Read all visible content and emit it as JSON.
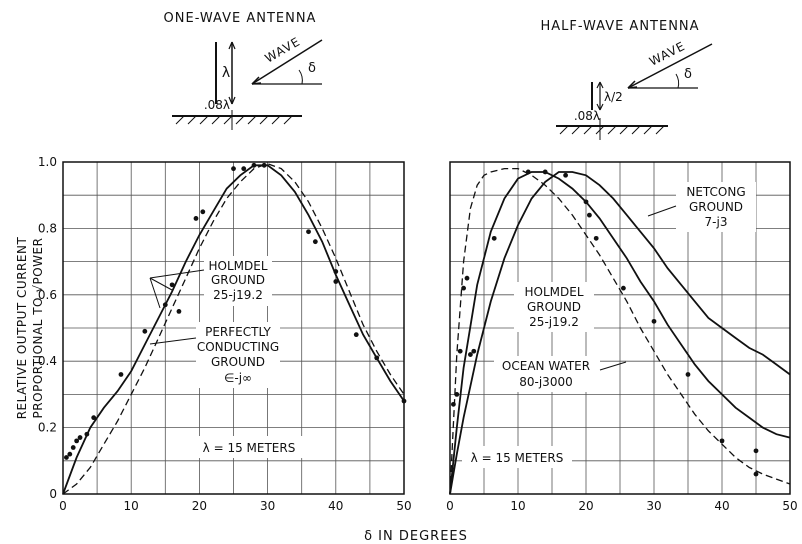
{
  "shared": {
    "xlabel": "δ IN DEGREES",
    "ylabel_line1": "RELATIVE OUTPUT CURRENT",
    "ylabel_line2": "PROPORTIONAL TO √POWER"
  },
  "diagrams": {
    "left": {
      "title": "ONE-WAVE ANTENNA",
      "height_label": "λ",
      "spacing_label": ".08λ",
      "wave_label": "WAVE",
      "angle_label": "δ"
    },
    "right": {
      "title": "HALF-WAVE ANTENNA",
      "height_label": "λ/2",
      "spacing_label": ".08λ",
      "wave_label": "WAVE",
      "angle_label": "δ"
    }
  },
  "chart_data": [
    {
      "type": "line",
      "title": "ONE-WAVE ANTENNA",
      "xlabel": "δ IN DEGREES",
      "ylabel": "RELATIVE OUTPUT CURRENT PROPORTIONAL TO √POWER",
      "xlim": [
        0,
        50
      ],
      "ylim": [
        0,
        1.0
      ],
      "xticks": [
        "0",
        "10",
        "20",
        "30",
        "40",
        "50"
      ],
      "yticks": [
        "0",
        "0.2",
        "0.4",
        "0.6",
        "0.8",
        "1.0"
      ],
      "grid": true,
      "annotations": [
        {
          "text": "HOLMDEL",
          "line2": "GROUND",
          "line3": "25-j19.2"
        },
        {
          "text": "PERFECTLY",
          "line2": "CONDUCTING",
          "line3": "GROUND",
          "line4": "∈-j∞"
        },
        {
          "text": "λ = 15 METERS"
        }
      ],
      "series": [
        {
          "style": "solid",
          "x": [
            0,
            2,
            4,
            6,
            8,
            10,
            12,
            14,
            16,
            18,
            20,
            22,
            24,
            26,
            28,
            30,
            32,
            34,
            36,
            38,
            40,
            42,
            44,
            46,
            48,
            50
          ],
          "y": [
            0.0,
            0.11,
            0.2,
            0.26,
            0.31,
            0.37,
            0.45,
            0.53,
            0.61,
            0.7,
            0.78,
            0.85,
            0.92,
            0.96,
            0.99,
            0.99,
            0.96,
            0.91,
            0.84,
            0.76,
            0.66,
            0.57,
            0.48,
            0.41,
            0.34,
            0.28
          ]
        },
        {
          "style": "dashed",
          "x": [
            0,
            2,
            4,
            6,
            8,
            10,
            12,
            14,
            16,
            18,
            20,
            22,
            24,
            26,
            28,
            30,
            32,
            34,
            36,
            38,
            40,
            42,
            44,
            46,
            48,
            50
          ],
          "y": [
            0.0,
            0.03,
            0.08,
            0.15,
            0.22,
            0.3,
            0.38,
            0.47,
            0.56,
            0.65,
            0.74,
            0.82,
            0.89,
            0.94,
            0.98,
            0.995,
            0.98,
            0.94,
            0.88,
            0.8,
            0.71,
            0.61,
            0.51,
            0.43,
            0.36,
            0.3
          ]
        }
      ],
      "measured_points": {
        "x": [
          0.5,
          1.0,
          1.5,
          2.0,
          2.5,
          3.5,
          4.5,
          8.5,
          12.0,
          15.0,
          16.0,
          17.0,
          19.5,
          20.5,
          25.0,
          26.5,
          28.0,
          29.5,
          36.0,
          37.0,
          40.0,
          40.0,
          43.0,
          46.0,
          50.0
        ],
        "y": [
          0.11,
          0.12,
          0.14,
          0.16,
          0.17,
          0.18,
          0.23,
          0.36,
          0.49,
          0.57,
          0.63,
          0.55,
          0.83,
          0.85,
          0.98,
          0.98,
          0.99,
          0.99,
          0.79,
          0.76,
          0.67,
          0.64,
          0.48,
          0.41,
          0.28
        ]
      }
    },
    {
      "type": "line",
      "title": "HALF-WAVE ANTENNA",
      "xlabel": "δ IN DEGREES",
      "ylabel": "RELATIVE OUTPUT CURRENT PROPORTIONAL TO √POWER",
      "xlim": [
        0,
        50
      ],
      "ylim": [
        0,
        1.0
      ],
      "xticks": [
        "0",
        "10",
        "20",
        "30",
        "40",
        "50"
      ],
      "yticks": [
        "0",
        "0.2",
        "0.4",
        "0.6",
        "0.8",
        "1.0"
      ],
      "grid": true,
      "annotations": [
        {
          "text": "NETCONG",
          "line2": "GROUND",
          "line3": "7-j3"
        },
        {
          "text": "HOLMDEL",
          "line2": "GROUND",
          "line3": "25-j19.2"
        },
        {
          "text": "OCEAN WATER",
          "line2": "80-j3000"
        },
        {
          "text": "λ = 15 METERS"
        }
      ],
      "series": [
        {
          "style": "dashed",
          "label": "OCEAN WATER 80-j3000",
          "x": [
            0,
            1,
            2,
            3,
            4,
            5,
            6,
            8,
            10,
            12,
            14,
            16,
            18,
            20,
            22,
            24,
            26,
            28,
            30,
            32,
            34,
            36,
            38,
            40,
            42,
            44,
            46,
            48,
            50
          ],
          "y": [
            0.0,
            0.42,
            0.7,
            0.86,
            0.93,
            0.96,
            0.97,
            0.98,
            0.98,
            0.96,
            0.93,
            0.89,
            0.84,
            0.78,
            0.72,
            0.65,
            0.58,
            0.5,
            0.43,
            0.36,
            0.3,
            0.24,
            0.19,
            0.15,
            0.11,
            0.08,
            0.06,
            0.045,
            0.03
          ]
        },
        {
          "style": "solid",
          "label": "HOLMDEL GROUND 25-j19.2",
          "x": [
            0,
            1,
            2,
            4,
            6,
            8,
            10,
            12,
            14,
            16,
            18,
            20,
            22,
            24,
            26,
            28,
            30,
            32,
            34,
            36,
            38,
            40,
            42,
            44,
            46,
            48,
            50
          ],
          "y": [
            0.0,
            0.2,
            0.38,
            0.63,
            0.79,
            0.89,
            0.95,
            0.97,
            0.97,
            0.95,
            0.92,
            0.88,
            0.83,
            0.77,
            0.71,
            0.64,
            0.58,
            0.51,
            0.45,
            0.39,
            0.34,
            0.3,
            0.26,
            0.23,
            0.2,
            0.18,
            0.17
          ]
        },
        {
          "style": "solid",
          "label": "NETCONG GROUND 7-j3",
          "x": [
            0,
            1,
            2,
            4,
            6,
            8,
            10,
            12,
            14,
            16,
            18,
            20,
            22,
            24,
            26,
            28,
            30,
            32,
            34,
            36,
            38,
            40,
            42,
            44,
            46,
            48,
            50
          ],
          "y": [
            0.0,
            0.12,
            0.23,
            0.42,
            0.58,
            0.71,
            0.81,
            0.89,
            0.94,
            0.97,
            0.97,
            0.96,
            0.93,
            0.89,
            0.84,
            0.79,
            0.74,
            0.68,
            0.63,
            0.58,
            0.53,
            0.5,
            0.47,
            0.44,
            0.42,
            0.39,
            0.36
          ]
        }
      ],
      "measured_points": {
        "x": [
          0.5,
          1.0,
          1.5,
          2.0,
          2.5,
          3.0,
          3.5,
          6.5,
          11.5,
          14.0,
          17.0,
          20.0,
          20.5,
          21.5,
          25.5,
          30.0,
          35.0,
          40.0,
          45.0,
          45.0
        ],
        "y": [
          0.27,
          0.3,
          0.43,
          0.62,
          0.65,
          0.42,
          0.43,
          0.77,
          0.97,
          0.97,
          0.96,
          0.88,
          0.84,
          0.77,
          0.62,
          0.52,
          0.36,
          0.16,
          0.13,
          0.06
        ]
      }
    }
  ]
}
